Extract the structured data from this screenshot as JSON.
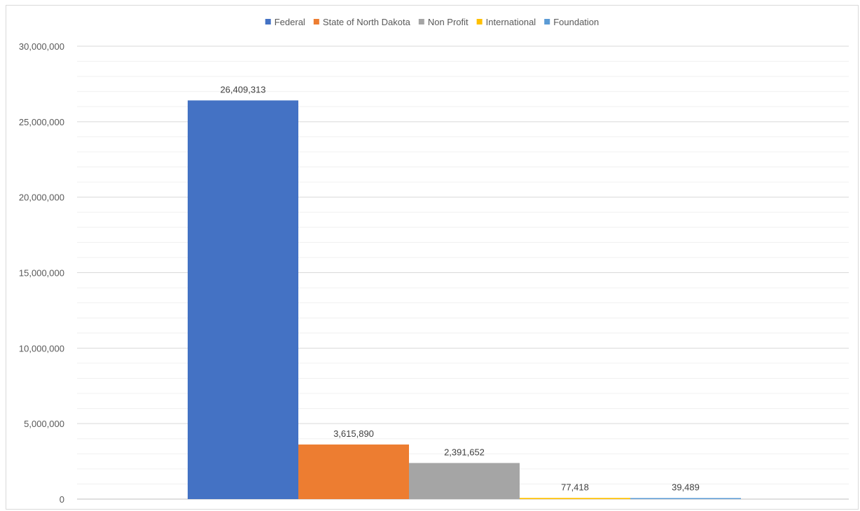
{
  "chart_data": {
    "type": "bar",
    "title": "",
    "xlabel": "",
    "ylabel": "",
    "ylim": [
      0,
      30000000
    ],
    "y_ticks": [
      "0",
      "5,000,000",
      "10,000,000",
      "15,000,000",
      "20,000,000",
      "25,000,000",
      "30,000,000"
    ],
    "grid": true,
    "legend_position": "top-center",
    "series": [
      {
        "name": "Federal",
        "value": 26409313,
        "label": "26,409,313",
        "color": "#4472C4"
      },
      {
        "name": "State of North Dakota",
        "value": 3615890,
        "label": "3,615,890",
        "color": "#ED7D31"
      },
      {
        "name": "Non Profit",
        "value": 2391652,
        "label": "2,391,652",
        "color": "#A5A5A5"
      },
      {
        "name": "International",
        "value": 77418,
        "label": "77,418",
        "color": "#FFC000"
      },
      {
        "name": "Foundation",
        "value": 39489,
        "label": "39,489",
        "color": "#5B9BD5"
      }
    ]
  }
}
